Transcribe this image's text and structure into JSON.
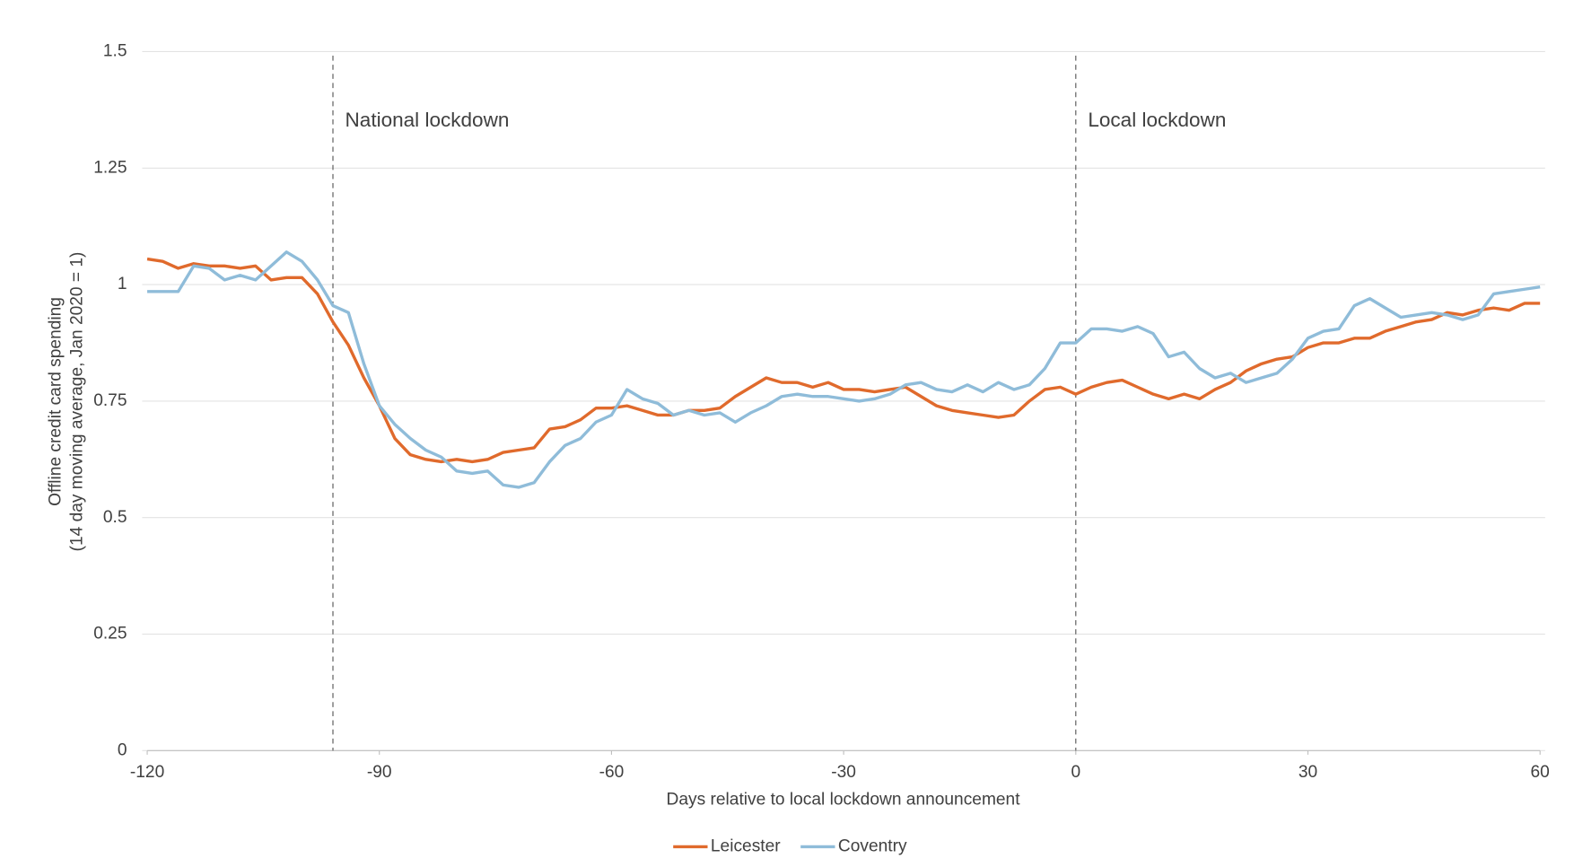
{
  "chart_data": {
    "type": "line",
    "x_label": "Days relative to local lockdown announcement",
    "y_label": [
      "Offline credit card spending",
      "(14 day moving average, Jan 2020 = 1)"
    ],
    "x": [
      -120,
      -118,
      -116,
      -114,
      -112,
      -110,
      -108,
      -106,
      -104,
      -102,
      -100,
      -98,
      -96,
      -94,
      -92,
      -90,
      -88,
      -86,
      -84,
      -82,
      -80,
      -78,
      -76,
      -74,
      -72,
      -70,
      -68,
      -66,
      -64,
      -62,
      -60,
      -58,
      -56,
      -54,
      -52,
      -50,
      -48,
      -46,
      -44,
      -42,
      -40,
      -38,
      -36,
      -34,
      -32,
      -30,
      -28,
      -26,
      -24,
      -22,
      -20,
      -18,
      -16,
      -14,
      -12,
      -10,
      -8,
      -6,
      -4,
      -2,
      0,
      2,
      4,
      6,
      8,
      10,
      12,
      14,
      16,
      18,
      20,
      22,
      24,
      26,
      28,
      30,
      32,
      34,
      36,
      38,
      40,
      42,
      44,
      46,
      48,
      50,
      52,
      54,
      56,
      58,
      60
    ],
    "series": [
      {
        "name": "Leicester",
        "color": "#e06a2c",
        "values": [
          1.055,
          1.05,
          1.035,
          1.045,
          1.04,
          1.04,
          1.035,
          1.04,
          1.01,
          1.015,
          1.015,
          0.98,
          0.92,
          0.87,
          0.8,
          0.74,
          0.67,
          0.635,
          0.625,
          0.62,
          0.625,
          0.62,
          0.625,
          0.64,
          0.645,
          0.65,
          0.69,
          0.695,
          0.71,
          0.735,
          0.735,
          0.74,
          0.73,
          0.72,
          0.72,
          0.73,
          0.73,
          0.735,
          0.76,
          0.78,
          0.8,
          0.79,
          0.79,
          0.78,
          0.79,
          0.775,
          0.775,
          0.77,
          0.775,
          0.78,
          0.76,
          0.74,
          0.73,
          0.725,
          0.72,
          0.715,
          0.72,
          0.75,
          0.775,
          0.78,
          0.765,
          0.78,
          0.79,
          0.795,
          0.78,
          0.765,
          0.755,
          0.765,
          0.755,
          0.775,
          0.79,
          0.815,
          0.83,
          0.84,
          0.845,
          0.865,
          0.875,
          0.875,
          0.885,
          0.885,
          0.9,
          0.91,
          0.92,
          0.925,
          0.94,
          0.935,
          0.945,
          0.95,
          0.945,
          0.96,
          0.96
        ]
      },
      {
        "name": "Coventry",
        "color": "#8fbcd9",
        "values": [
          0.985,
          0.985,
          0.985,
          1.04,
          1.035,
          1.01,
          1.02,
          1.01,
          1.04,
          1.07,
          1.05,
          1.01,
          0.955,
          0.94,
          0.83,
          0.74,
          0.7,
          0.67,
          0.645,
          0.63,
          0.6,
          0.595,
          0.6,
          0.57,
          0.565,
          0.575,
          0.62,
          0.655,
          0.67,
          0.705,
          0.72,
          0.775,
          0.755,
          0.745,
          0.72,
          0.73,
          0.72,
          0.725,
          0.705,
          0.725,
          0.74,
          0.76,
          0.765,
          0.76,
          0.76,
          0.755,
          0.75,
          0.755,
          0.765,
          0.785,
          0.79,
          0.775,
          0.77,
          0.785,
          0.77,
          0.79,
          0.775,
          0.785,
          0.82,
          0.875,
          0.875,
          0.905,
          0.905,
          0.9,
          0.91,
          0.895,
          0.845,
          0.855,
          0.82,
          0.8,
          0.81,
          0.79,
          0.8,
          0.81,
          0.84,
          0.885,
          0.9,
          0.905,
          0.955,
          0.97,
          0.95,
          0.93,
          0.935,
          0.94,
          0.935,
          0.925,
          0.935,
          0.98,
          0.985,
          0.99,
          0.995
        ]
      }
    ],
    "annotations": [
      {
        "x": -96,
        "label": "National lockdown"
      },
      {
        "x": 0,
        "label": "Local lockdown"
      }
    ],
    "xlim": [
      -120,
      60
    ],
    "xticks": [
      -120,
      -90,
      -60,
      -30,
      0,
      30,
      60
    ],
    "ylim": [
      0,
      1.5
    ],
    "yticks": [
      0,
      0.25,
      0.5,
      0.75,
      1,
      1.25,
      1.5
    ],
    "grid": true,
    "legend": "bottom"
  }
}
